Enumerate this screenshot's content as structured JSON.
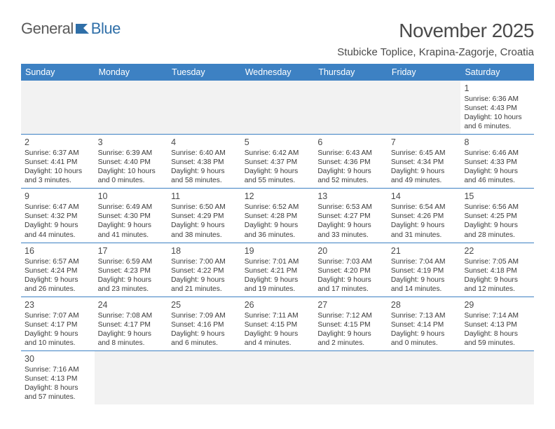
{
  "brand": {
    "part1": "General",
    "part2": "Blue"
  },
  "title": "November 2025",
  "location": "Stubicke Toplice, Krapina-Zagorje, Croatia",
  "weekdays": [
    "Sunday",
    "Monday",
    "Tuesday",
    "Wednesday",
    "Thursday",
    "Friday",
    "Saturday"
  ],
  "colors": {
    "header_bg": "#3d81c3",
    "header_text": "#ffffff",
    "row_border": "#3d81c3",
    "empty_bg": "#f2f2f2",
    "text": "#3a3a3a",
    "brand_blue": "#2f6fa8",
    "title_fontsize": 28,
    "location_fontsize": 15,
    "weekday_fontsize": 12.5,
    "cell_fontsize": 10.2
  },
  "weeks": [
    [
      {
        "empty": true
      },
      {
        "empty": true
      },
      {
        "empty": true
      },
      {
        "empty": true
      },
      {
        "empty": true
      },
      {
        "empty": true
      },
      {
        "n": "1",
        "sr": "Sunrise: 6:36 AM",
        "ss": "Sunset: 4:43 PM",
        "dl": "Daylight: 10 hours and 6 minutes."
      }
    ],
    [
      {
        "n": "2",
        "sr": "Sunrise: 6:37 AM",
        "ss": "Sunset: 4:41 PM",
        "dl": "Daylight: 10 hours and 3 minutes."
      },
      {
        "n": "3",
        "sr": "Sunrise: 6:39 AM",
        "ss": "Sunset: 4:40 PM",
        "dl": "Daylight: 10 hours and 0 minutes."
      },
      {
        "n": "4",
        "sr": "Sunrise: 6:40 AM",
        "ss": "Sunset: 4:38 PM",
        "dl": "Daylight: 9 hours and 58 minutes."
      },
      {
        "n": "5",
        "sr": "Sunrise: 6:42 AM",
        "ss": "Sunset: 4:37 PM",
        "dl": "Daylight: 9 hours and 55 minutes."
      },
      {
        "n": "6",
        "sr": "Sunrise: 6:43 AM",
        "ss": "Sunset: 4:36 PM",
        "dl": "Daylight: 9 hours and 52 minutes."
      },
      {
        "n": "7",
        "sr": "Sunrise: 6:45 AM",
        "ss": "Sunset: 4:34 PM",
        "dl": "Daylight: 9 hours and 49 minutes."
      },
      {
        "n": "8",
        "sr": "Sunrise: 6:46 AM",
        "ss": "Sunset: 4:33 PM",
        "dl": "Daylight: 9 hours and 46 minutes."
      }
    ],
    [
      {
        "n": "9",
        "sr": "Sunrise: 6:47 AM",
        "ss": "Sunset: 4:32 PM",
        "dl": "Daylight: 9 hours and 44 minutes."
      },
      {
        "n": "10",
        "sr": "Sunrise: 6:49 AM",
        "ss": "Sunset: 4:30 PM",
        "dl": "Daylight: 9 hours and 41 minutes."
      },
      {
        "n": "11",
        "sr": "Sunrise: 6:50 AM",
        "ss": "Sunset: 4:29 PM",
        "dl": "Daylight: 9 hours and 38 minutes."
      },
      {
        "n": "12",
        "sr": "Sunrise: 6:52 AM",
        "ss": "Sunset: 4:28 PM",
        "dl": "Daylight: 9 hours and 36 minutes."
      },
      {
        "n": "13",
        "sr": "Sunrise: 6:53 AM",
        "ss": "Sunset: 4:27 PM",
        "dl": "Daylight: 9 hours and 33 minutes."
      },
      {
        "n": "14",
        "sr": "Sunrise: 6:54 AM",
        "ss": "Sunset: 4:26 PM",
        "dl": "Daylight: 9 hours and 31 minutes."
      },
      {
        "n": "15",
        "sr": "Sunrise: 6:56 AM",
        "ss": "Sunset: 4:25 PM",
        "dl": "Daylight: 9 hours and 28 minutes."
      }
    ],
    [
      {
        "n": "16",
        "sr": "Sunrise: 6:57 AM",
        "ss": "Sunset: 4:24 PM",
        "dl": "Daylight: 9 hours and 26 minutes."
      },
      {
        "n": "17",
        "sr": "Sunrise: 6:59 AM",
        "ss": "Sunset: 4:23 PM",
        "dl": "Daylight: 9 hours and 23 minutes."
      },
      {
        "n": "18",
        "sr": "Sunrise: 7:00 AM",
        "ss": "Sunset: 4:22 PM",
        "dl": "Daylight: 9 hours and 21 minutes."
      },
      {
        "n": "19",
        "sr": "Sunrise: 7:01 AM",
        "ss": "Sunset: 4:21 PM",
        "dl": "Daylight: 9 hours and 19 minutes."
      },
      {
        "n": "20",
        "sr": "Sunrise: 7:03 AM",
        "ss": "Sunset: 4:20 PM",
        "dl": "Daylight: 9 hours and 17 minutes."
      },
      {
        "n": "21",
        "sr": "Sunrise: 7:04 AM",
        "ss": "Sunset: 4:19 PM",
        "dl": "Daylight: 9 hours and 14 minutes."
      },
      {
        "n": "22",
        "sr": "Sunrise: 7:05 AM",
        "ss": "Sunset: 4:18 PM",
        "dl": "Daylight: 9 hours and 12 minutes."
      }
    ],
    [
      {
        "n": "23",
        "sr": "Sunrise: 7:07 AM",
        "ss": "Sunset: 4:17 PM",
        "dl": "Daylight: 9 hours and 10 minutes."
      },
      {
        "n": "24",
        "sr": "Sunrise: 7:08 AM",
        "ss": "Sunset: 4:17 PM",
        "dl": "Daylight: 9 hours and 8 minutes."
      },
      {
        "n": "25",
        "sr": "Sunrise: 7:09 AM",
        "ss": "Sunset: 4:16 PM",
        "dl": "Daylight: 9 hours and 6 minutes."
      },
      {
        "n": "26",
        "sr": "Sunrise: 7:11 AM",
        "ss": "Sunset: 4:15 PM",
        "dl": "Daylight: 9 hours and 4 minutes."
      },
      {
        "n": "27",
        "sr": "Sunrise: 7:12 AM",
        "ss": "Sunset: 4:15 PM",
        "dl": "Daylight: 9 hours and 2 minutes."
      },
      {
        "n": "28",
        "sr": "Sunrise: 7:13 AM",
        "ss": "Sunset: 4:14 PM",
        "dl": "Daylight: 9 hours and 0 minutes."
      },
      {
        "n": "29",
        "sr": "Sunrise: 7:14 AM",
        "ss": "Sunset: 4:13 PM",
        "dl": "Daylight: 8 hours and 59 minutes."
      }
    ],
    [
      {
        "n": "30",
        "sr": "Sunrise: 7:16 AM",
        "ss": "Sunset: 4:13 PM",
        "dl": "Daylight: 8 hours and 57 minutes."
      },
      {
        "empty": true
      },
      {
        "empty": true
      },
      {
        "empty": true
      },
      {
        "empty": true
      },
      {
        "empty": true
      },
      {
        "empty": true
      }
    ]
  ]
}
